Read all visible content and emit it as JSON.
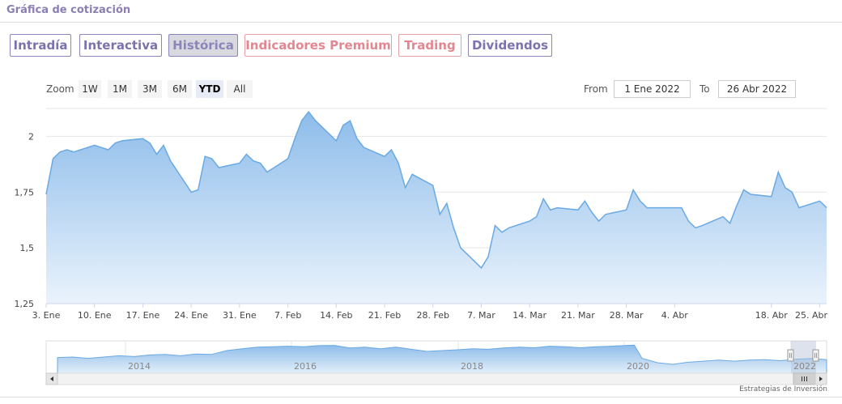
{
  "title": "Gráfica de cotización",
  "tabs": [
    {
      "label": "Intradía",
      "style": "purple"
    },
    {
      "label": "Interactiva",
      "style": "purple"
    },
    {
      "label": "Histórica",
      "style": "active"
    },
    {
      "label": "Indicadores Premium",
      "style": "red"
    },
    {
      "label": "Trading",
      "style": "red"
    },
    {
      "label": "Dividendos",
      "style": "purple"
    }
  ],
  "zoom": {
    "label": "Zoom",
    "buttons": [
      "1W",
      "1M",
      "3M",
      "6M",
      "YTD",
      "All"
    ],
    "selected": "YTD"
  },
  "range": {
    "from_label": "From",
    "from_value": "1 Ene 2022",
    "to_label": "To",
    "to_value": "26 Abr 2022"
  },
  "colors": {
    "line": "#6aa9e3",
    "fill_top": "#8dbcea",
    "fill_bottom": "#eaf3fc",
    "grid": "#e6e6e6",
    "tab_purple": "#7b72ae",
    "tab_red": "#e28790"
  },
  "chart_data": {
    "type": "area",
    "title": "",
    "xlabel": "",
    "ylabel": "",
    "ylim": [
      1.25,
      2.125
    ],
    "yticks": [
      1.25,
      1.5,
      1.75,
      2
    ],
    "ytick_labels": [
      "1,25",
      "1,5",
      "1,75",
      "2"
    ],
    "grid": true,
    "xticks": [
      {
        "date": "2022-01-03",
        "label": "3. Ene"
      },
      {
        "date": "2022-01-10",
        "label": "10. Ene"
      },
      {
        "date": "2022-01-17",
        "label": "17. Ene"
      },
      {
        "date": "2022-01-24",
        "label": "24. Ene"
      },
      {
        "date": "2022-01-31",
        "label": "31. Ene"
      },
      {
        "date": "2022-02-07",
        "label": "7. Feb"
      },
      {
        "date": "2022-02-14",
        "label": "14. Feb"
      },
      {
        "date": "2022-02-21",
        "label": "21. Feb"
      },
      {
        "date": "2022-02-28",
        "label": "28. Feb"
      },
      {
        "date": "2022-03-07",
        "label": "7. Mar"
      },
      {
        "date": "2022-03-14",
        "label": "14. Mar"
      },
      {
        "date": "2022-03-21",
        "label": "21. Mar"
      },
      {
        "date": "2022-03-28",
        "label": "28. Mar"
      },
      {
        "date": "2022-04-04",
        "label": "4. Abr"
      },
      {
        "date": "2022-04-18",
        "label": "18. Abr"
      },
      {
        "date": "2022-04-25",
        "label": "25. Abr"
      }
    ],
    "series": [
      {
        "x": [
          "2022-01-03",
          "2022-01-04",
          "2022-01-05",
          "2022-01-06",
          "2022-01-07",
          "2022-01-10",
          "2022-01-11",
          "2022-01-12",
          "2022-01-13",
          "2022-01-14",
          "2022-01-17",
          "2022-01-18",
          "2022-01-19",
          "2022-01-20",
          "2022-01-21",
          "2022-01-24",
          "2022-01-25",
          "2022-01-26",
          "2022-01-27",
          "2022-01-28",
          "2022-01-31",
          "2022-02-01",
          "2022-02-02",
          "2022-02-03",
          "2022-02-04",
          "2022-02-07",
          "2022-02-08",
          "2022-02-09",
          "2022-02-10",
          "2022-02-11",
          "2022-02-14",
          "2022-02-15",
          "2022-02-16",
          "2022-02-17",
          "2022-02-18",
          "2022-02-21",
          "2022-02-22",
          "2022-02-23",
          "2022-02-24",
          "2022-02-25",
          "2022-02-28",
          "2022-03-01",
          "2022-03-02",
          "2022-03-03",
          "2022-03-04",
          "2022-03-07",
          "2022-03-08",
          "2022-03-09",
          "2022-03-10",
          "2022-03-11",
          "2022-03-14",
          "2022-03-15",
          "2022-03-16",
          "2022-03-17",
          "2022-03-18",
          "2022-03-21",
          "2022-03-22",
          "2022-03-23",
          "2022-03-24",
          "2022-03-25",
          "2022-03-28",
          "2022-03-29",
          "2022-03-30",
          "2022-03-31",
          "2022-04-01",
          "2022-04-04",
          "2022-04-05",
          "2022-04-06",
          "2022-04-07",
          "2022-04-08",
          "2022-04-11",
          "2022-04-12",
          "2022-04-13",
          "2022-04-14",
          "2022-04-15",
          "2022-04-18",
          "2022-04-19",
          "2022-04-20",
          "2022-04-21",
          "2022-04-22",
          "2022-04-25",
          "2022-04-26"
        ],
        "y": [
          1.74,
          1.9,
          1.93,
          1.94,
          1.93,
          1.96,
          1.95,
          1.94,
          1.97,
          1.98,
          1.99,
          1.97,
          1.92,
          1.96,
          1.89,
          1.75,
          1.76,
          1.91,
          1.9,
          1.86,
          1.88,
          1.92,
          1.89,
          1.88,
          1.84,
          1.9,
          1.99,
          2.07,
          2.11,
          2.07,
          1.98,
          2.05,
          2.07,
          1.99,
          1.95,
          1.91,
          1.94,
          1.88,
          1.77,
          1.83,
          1.78,
          1.65,
          1.7,
          1.59,
          1.5,
          1.41,
          1.46,
          1.6,
          1.57,
          1.59,
          1.62,
          1.64,
          1.72,
          1.67,
          1.68,
          1.67,
          1.71,
          1.66,
          1.62,
          1.65,
          1.67,
          1.76,
          1.71,
          1.68,
          1.68,
          1.68,
          1.68,
          1.62,
          1.59,
          1.6,
          1.64,
          1.61,
          1.69,
          1.76,
          1.74,
          1.73,
          1.84,
          1.77,
          1.75,
          1.68,
          1.71,
          1.68
        ]
      }
    ]
  },
  "navigator": {
    "year_labels": [
      "2014",
      "2016",
      "2018",
      "2020",
      "2022"
    ],
    "scroll_left_icon": "arrow-left-icon",
    "scroll_right_icon": "arrow-right-icon",
    "grip_icon": "grip-icon"
  },
  "credit": "Estrategias de Inversión"
}
